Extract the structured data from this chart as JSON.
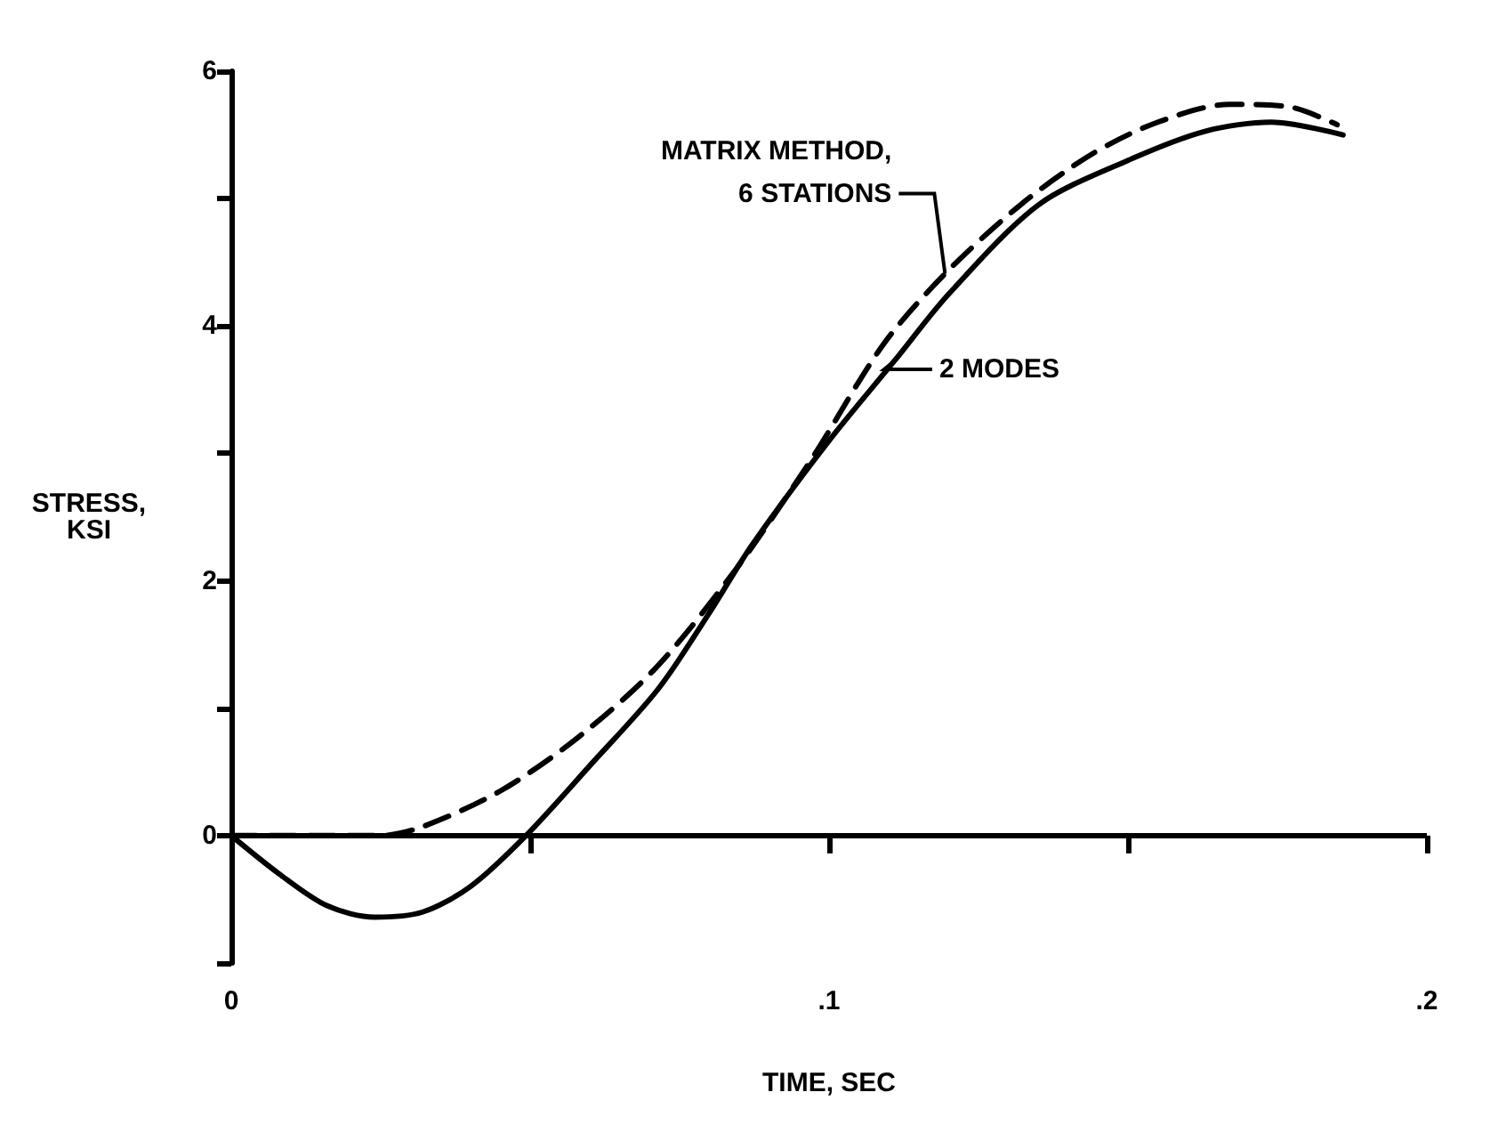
{
  "chart_data": {
    "type": "line",
    "xlabel": "TIME, SEC",
    "ylabel": "STRESS,\nKSI",
    "xlim": [
      0,
      0.2
    ],
    "xticks": [
      0,
      {
        "value": 0.05,
        "label": null
      },
      {
        "value": 0.1,
        "label": ".1"
      },
      {
        "value": 0.15,
        "label": null
      },
      {
        "value": 0.2,
        "label": ".2"
      }
    ],
    "ylim": [
      -1,
      6
    ],
    "yticks": [
      {
        "value": -1,
        "label": null
      },
      0,
      {
        "value": 1,
        "label": null
      },
      2,
      {
        "value": 3,
        "label": null
      },
      4,
      {
        "value": 5,
        "label": null
      },
      6
    ],
    "grid": false,
    "marker": "none",
    "ref_lines": [
      {
        "axis": "y",
        "value": 0,
        "color": "#000000",
        "line_style": "solid"
      }
    ],
    "annotations": [
      {
        "text": "MATRIX METHOD,\n6 STATIONS",
        "x": 0.1194,
        "y": 4.41
      },
      {
        "text": "2 MODES",
        "x": 0.111,
        "y": 3.73
      }
    ],
    "series": [
      {
        "color": "#000000",
        "line_style": "dashed",
        "x": [
          0,
          0.025,
          0.032,
          0.045,
          0.058,
          0.0711,
          0.0844,
          0.097,
          0.109,
          0.1194,
          0.132,
          0.144,
          0.155,
          0.167,
          0.177,
          0.185
        ],
        "values": [
          0,
          0,
          0.07,
          0.35,
          0.77,
          1.32,
          2.09,
          2.95,
          3.85,
          4.41,
          4.95,
          5.35,
          5.6,
          5.74,
          5.72,
          5.58
        ]
      },
      {
        "color": "#000000",
        "line_style": "solid",
        "x": [
          0,
          0.008,
          0.016,
          0.024,
          0.032,
          0.04,
          0.0493,
          0.06,
          0.0714,
          0.08,
          0.0871,
          0.1,
          0.111,
          0.12,
          0.135,
          0.15,
          0.163,
          0.174,
          0.186
        ],
        "values": [
          0,
          -0.3,
          -0.55,
          -0.64,
          -0.6,
          -0.4,
          0,
          0.55,
          1.15,
          1.75,
          2.28,
          3.1,
          3.73,
          4.25,
          4.95,
          5.3,
          5.53,
          5.6,
          5.5
        ]
      }
    ]
  }
}
